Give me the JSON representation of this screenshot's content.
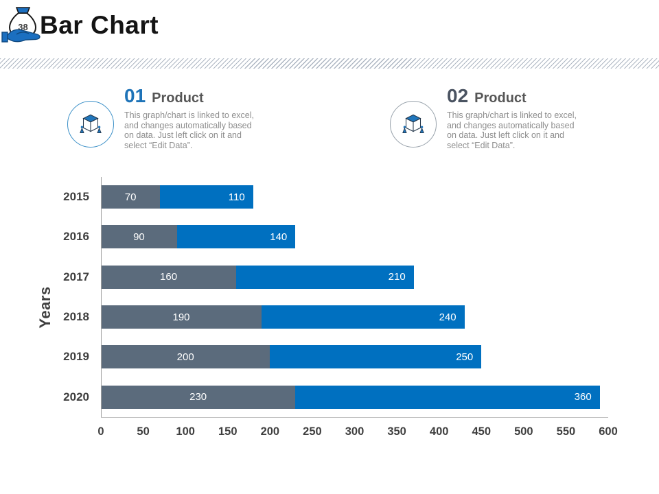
{
  "page": {
    "number": "38",
    "title": "Bar Chart"
  },
  "callouts": [
    {
      "index": "01",
      "title": "Product",
      "description": "This graph/chart is linked to excel,\nand changes automatically based\non data. Just left click on it and\nselect “Edit Data”.",
      "accent": "#1e73b8",
      "circle_color": "#3a8fc7"
    },
    {
      "index": "02",
      "title": "Product",
      "description": "This graph/chart is linked to excel,\nand changes automatically based\non data. Just left click on it and\nselect “Edit Data”.",
      "accent": "#4a5361",
      "circle_color": "#98a2ab"
    }
  ],
  "chart_data": {
    "type": "bar",
    "orientation": "horizontal",
    "stacked": true,
    "title": "",
    "ylabel": "Years",
    "xlabel": "",
    "xlim": [
      0,
      600
    ],
    "x_ticks": [
      0,
      50,
      100,
      150,
      200,
      250,
      300,
      350,
      400,
      450,
      500,
      550,
      600
    ],
    "grid": false,
    "legend": "none",
    "categories": [
      "2015",
      "2016",
      "2017",
      "2018",
      "2019",
      "2020"
    ],
    "series": [
      {
        "name": "Product 1",
        "color": "#5b6b7c",
        "label_color": "#ffffff",
        "values": [
          70,
          90,
          160,
          190,
          200,
          230
        ]
      },
      {
        "name": "Product 2",
        "color": "#0070c0",
        "label_color": "#ffffff",
        "values": [
          110,
          140,
          210,
          240,
          250,
          360
        ]
      }
    ]
  }
}
